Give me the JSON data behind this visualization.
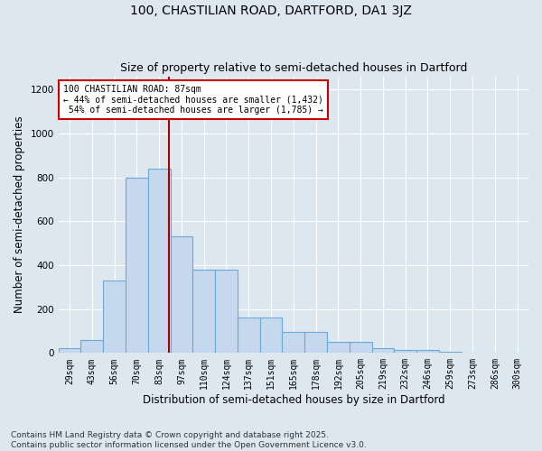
{
  "title_line1": "100, CHASTILIAN ROAD, DARTFORD, DA1 3JZ",
  "title_line2": "Size of property relative to semi-detached houses in Dartford",
  "xlabel": "Distribution of semi-detached houses by size in Dartford",
  "ylabel": "Number of semi-detached properties",
  "footer": "Contains HM Land Registry data © Crown copyright and database right 2025.\nContains public sector information licensed under the Open Government Licence v3.0.",
  "bin_labels": [
    "29sqm",
    "43sqm",
    "56sqm",
    "70sqm",
    "83sqm",
    "97sqm",
    "110sqm",
    "124sqm",
    "137sqm",
    "151sqm",
    "165sqm",
    "178sqm",
    "192sqm",
    "205sqm",
    "219sqm",
    "232sqm",
    "246sqm",
    "259sqm",
    "273sqm",
    "286sqm",
    "300sqm"
  ],
  "bar_values": [
    20,
    60,
    330,
    800,
    840,
    530,
    380,
    380,
    160,
    160,
    95,
    95,
    50,
    50,
    20,
    15,
    15,
    5,
    2,
    2,
    2
  ],
  "bar_color": "#c5d8ee",
  "bar_edge_color": "#6aaad4",
  "property_label": "100 CHASTILIAN ROAD: 87sqm",
  "pct_smaller": 44,
  "n_smaller": 1432,
  "pct_larger": 54,
  "n_larger": 1785,
  "vline_color": "#aa0000",
  "vline_x_index": 4.45,
  "annotation_box_color": "#ffffff",
  "annotation_box_edge": "#cc0000",
  "ylim": [
    0,
    1260
  ],
  "yticks": [
    0,
    200,
    400,
    600,
    800,
    1000,
    1200
  ],
  "bg_color": "#dce7f0",
  "plot_bg_color": "#dce7f0",
  "grid_color": "#ffffff",
  "title_fontsize": 10,
  "subtitle_fontsize": 9,
  "tick_fontsize": 7,
  "label_fontsize": 8.5,
  "footer_fontsize": 6.5
}
